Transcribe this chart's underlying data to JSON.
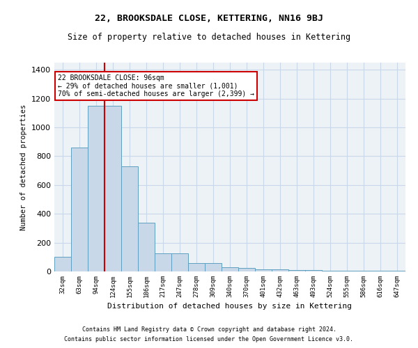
{
  "title": "22, BROOKSDALE CLOSE, KETTERING, NN16 9BJ",
  "subtitle": "Size of property relative to detached houses in Kettering",
  "xlabel": "Distribution of detached houses by size in Kettering",
  "ylabel": "Number of detached properties",
  "categories": [
    "32sqm",
    "63sqm",
    "94sqm",
    "124sqm",
    "155sqm",
    "186sqm",
    "217sqm",
    "247sqm",
    "278sqm",
    "309sqm",
    "340sqm",
    "370sqm",
    "401sqm",
    "432sqm",
    "463sqm",
    "493sqm",
    "524sqm",
    "555sqm",
    "586sqm",
    "616sqm",
    "647sqm"
  ],
  "values": [
    100,
    860,
    1150,
    1150,
    730,
    340,
    125,
    125,
    60,
    60,
    30,
    25,
    15,
    15,
    10,
    10,
    5,
    5,
    5,
    5,
    5
  ],
  "bar_color": "#c8d8e8",
  "bar_edge_color": "#5f9fbf",
  "red_line_x": 2.5,
  "property_label": "22 BROOKSDALE CLOSE: 96sqm",
  "annotation_line1": "← 29% of detached houses are smaller (1,001)",
  "annotation_line2": "70% of semi-detached houses are larger (2,399) →",
  "annotation_box_color": "#ffffff",
  "annotation_box_edge_color": "#cc0000",
  "grid_color": "#c8d8e8",
  "background_color": "#edf2f7",
  "ylim": [
    0,
    1450
  ],
  "yticks": [
    0,
    200,
    400,
    600,
    800,
    1000,
    1200,
    1400
  ],
  "footer1": "Contains HM Land Registry data © Crown copyright and database right 2024.",
  "footer2": "Contains public sector information licensed under the Open Government Licence v3.0."
}
